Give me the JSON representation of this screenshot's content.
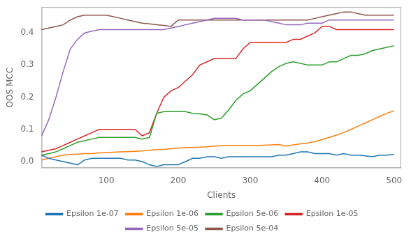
{
  "chart_data": {
    "type": "line",
    "xlabel": "Clients",
    "ylabel": "OOS MCC",
    "xlim": [
      10,
      510
    ],
    "ylim": [
      -0.02,
      0.48
    ],
    "xticks": [
      100,
      200,
      300,
      400,
      500
    ],
    "yticks": [
      {
        "value": 0.0,
        "label": "0.0"
      },
      0.1,
      0.2,
      0.3,
      0.4
    ],
    "grid": false,
    "legend": "bottom",
    "x": [
      10,
      20,
      30,
      40,
      50,
      60,
      70,
      80,
      90,
      100,
      110,
      120,
      130,
      140,
      150,
      160,
      170,
      180,
      190,
      200,
      210,
      220,
      230,
      240,
      250,
      260,
      270,
      280,
      290,
      300,
      310,
      320,
      330,
      340,
      350,
      360,
      370,
      380,
      390,
      400,
      410,
      420,
      430,
      440,
      450,
      460,
      470,
      480,
      490,
      500
    ],
    "series": [
      {
        "name": "Epsilon 1e-07",
        "color": "#1f77b4",
        "values": [
          0.02,
          0.01,
          0.005,
          0.0,
          -0.005,
          -0.01,
          0.005,
          0.01,
          0.01,
          0.01,
          0.01,
          0.01,
          0.005,
          0.005,
          0.0,
          -0.01,
          -0.015,
          -0.01,
          -0.01,
          -0.01,
          0.0,
          0.01,
          0.01,
          0.015,
          0.015,
          0.01,
          0.015,
          0.015,
          0.015,
          0.015,
          0.015,
          0.015,
          0.015,
          0.02,
          0.02,
          0.025,
          0.03,
          0.03,
          0.025,
          0.025,
          0.025,
          0.02,
          0.025,
          0.02,
          0.02,
          0.018,
          0.015,
          0.02,
          0.02,
          0.022
        ]
      },
      {
        "name": "Epsilon 1e-06",
        "color": "#ff7f0e",
        "values": [
          0.005,
          0.01,
          0.015,
          0.02,
          0.022,
          0.023,
          0.025,
          0.025,
          0.027,
          0.028,
          0.029,
          0.03,
          0.031,
          0.032,
          0.033,
          0.035,
          0.037,
          0.038,
          0.04,
          0.042,
          0.043,
          0.044,
          0.045,
          0.046,
          0.048,
          0.049,
          0.05,
          0.05,
          0.05,
          0.05,
          0.05,
          0.051,
          0.052,
          0.053,
          0.048,
          0.052,
          0.055,
          0.058,
          0.062,
          0.068,
          0.075,
          0.082,
          0.09,
          0.1,
          0.11,
          0.12,
          0.13,
          0.14,
          0.15,
          0.158
        ]
      },
      {
        "name": "Epsilon 5e-06",
        "color": "#2ca02c",
        "values": [
          0.02,
          0.025,
          0.03,
          0.04,
          0.05,
          0.06,
          0.065,
          0.07,
          0.075,
          0.075,
          0.075,
          0.075,
          0.075,
          0.075,
          0.07,
          0.075,
          0.15,
          0.155,
          0.155,
          0.155,
          0.155,
          0.15,
          0.148,
          0.145,
          0.13,
          0.135,
          0.16,
          0.19,
          0.21,
          0.22,
          0.24,
          0.26,
          0.28,
          0.295,
          0.305,
          0.31,
          0.305,
          0.3,
          0.3,
          0.3,
          0.31,
          0.31,
          0.32,
          0.33,
          0.33,
          0.335,
          0.345,
          0.35,
          0.355,
          0.36
        ]
      },
      {
        "name": "Epsilon 1e-05",
        "color": "#d62728",
        "values": [
          0.03,
          0.035,
          0.04,
          0.05,
          0.06,
          0.07,
          0.08,
          0.09,
          0.1,
          0.1,
          0.1,
          0.1,
          0.1,
          0.1,
          0.08,
          0.09,
          0.15,
          0.2,
          0.22,
          0.23,
          0.25,
          0.27,
          0.3,
          0.31,
          0.32,
          0.32,
          0.32,
          0.32,
          0.35,
          0.37,
          0.37,
          0.37,
          0.37,
          0.37,
          0.37,
          0.38,
          0.38,
          0.39,
          0.4,
          0.42,
          0.42,
          0.41,
          0.41,
          0.41,
          0.41,
          0.41,
          0.41,
          0.41,
          0.41,
          0.41
        ]
      },
      {
        "name": "Epsilon 5e-05",
        "color": "#9467bd",
        "values": [
          0.08,
          0.13,
          0.2,
          0.28,
          0.35,
          0.38,
          0.4,
          0.405,
          0.41,
          0.41,
          0.41,
          0.41,
          0.41,
          0.41,
          0.41,
          0.41,
          0.41,
          0.41,
          0.415,
          0.42,
          0.425,
          0.43,
          0.435,
          0.44,
          0.445,
          0.445,
          0.445,
          0.445,
          0.44,
          0.44,
          0.44,
          0.44,
          0.435,
          0.43,
          0.425,
          0.425,
          0.425,
          0.43,
          0.43,
          0.43,
          0.44,
          0.44,
          0.44,
          0.44,
          0.44,
          0.44,
          0.44,
          0.44,
          0.44,
          0.44
        ]
      },
      {
        "name": "Epsilon 5e-04",
        "color": "#8c564b",
        "values": [
          0.41,
          0.415,
          0.42,
          0.425,
          0.44,
          0.45,
          0.455,
          0.455,
          0.455,
          0.455,
          0.45,
          0.445,
          0.44,
          0.435,
          0.43,
          0.428,
          0.425,
          0.423,
          0.42,
          0.44,
          0.44,
          0.44,
          0.44,
          0.44,
          0.44,
          0.44,
          0.44,
          0.44,
          0.44,
          0.44,
          0.44,
          0.44,
          0.44,
          0.44,
          0.44,
          0.44,
          0.44,
          0.44,
          0.445,
          0.45,
          0.455,
          0.46,
          0.465,
          0.465,
          0.46,
          0.455,
          0.455,
          0.455,
          0.455,
          0.455
        ]
      }
    ]
  }
}
